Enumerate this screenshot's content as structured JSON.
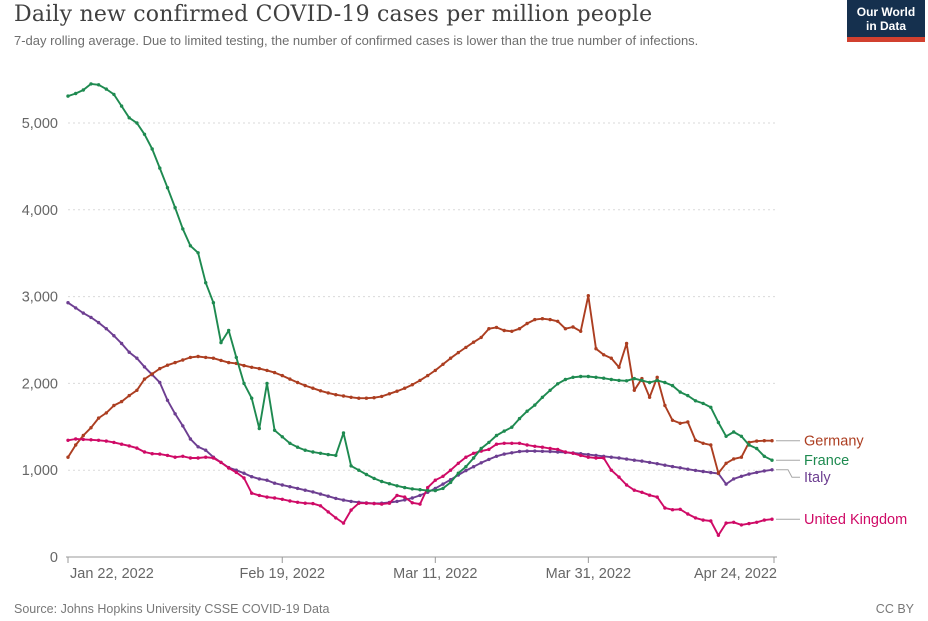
{
  "header": {
    "title": "Daily new confirmed COVID-19 cases per million people",
    "subtitle": "7-day rolling average. Due to limited testing, the number of confirmed cases is lower than the true number of infections."
  },
  "logo": {
    "line1": "Our World",
    "line2": "in Data",
    "bg_color": "#15304e",
    "bar_color": "#d1402f"
  },
  "footer": {
    "source_label": "Source:",
    "source_text": "Johns Hopkins University CSSE COVID-19 Data",
    "license": "CC BY"
  },
  "chart_data": {
    "type": "line",
    "title": "Daily new confirmed COVID-19 cases per million people",
    "subtitle": "7-day rolling average",
    "x_unit": "day",
    "start_date": "Jan 22, 2022",
    "end_date": "Apr 24, 2022",
    "n_points": 93,
    "grid": "horizontal-dashed",
    "legend_position": "right-of-lines",
    "ylim": [
      0,
      5450
    ],
    "x_ticks": [
      {
        "label": "Jan 22, 2022",
        "day": 0
      },
      {
        "label": "Feb 19, 2022",
        "day": 28
      },
      {
        "label": "Mar 11, 2022",
        "day": 48
      },
      {
        "label": "Mar 31, 2022",
        "day": 68
      },
      {
        "label": "Apr 24, 2022",
        "day": 92
      }
    ],
    "y_ticks": [
      {
        "value": 0,
        "label": "0"
      },
      {
        "value": 1000,
        "label": "1,000"
      },
      {
        "value": 2000,
        "label": "2,000"
      },
      {
        "value": 3000,
        "label": "3,000"
      },
      {
        "value": 4000,
        "label": "4,000"
      },
      {
        "value": 5000,
        "label": "5,000"
      }
    ],
    "series": [
      {
        "name": "Germany",
        "color": "#ac3e21",
        "values": [
          1150,
          1290,
          1400,
          1490,
          1600,
          1660,
          1745,
          1790,
          1860,
          1920,
          2050,
          2110,
          2170,
          2210,
          2240,
          2270,
          2300,
          2310,
          2300,
          2290,
          2265,
          2240,
          2230,
          2205,
          2185,
          2170,
          2150,
          2125,
          2090,
          2050,
          2010,
          1975,
          1945,
          1915,
          1890,
          1870,
          1855,
          1840,
          1830,
          1830,
          1835,
          1850,
          1880,
          1910,
          1945,
          1985,
          2035,
          2090,
          2150,
          2220,
          2290,
          2355,
          2415,
          2475,
          2530,
          2630,
          2645,
          2610,
          2600,
          2630,
          2690,
          2735,
          2745,
          2735,
          2715,
          2630,
          2650,
          2600,
          3010,
          2400,
          2330,
          2290,
          2185,
          2460,
          1920,
          2055,
          1840,
          2070,
          1745,
          1575,
          1540,
          1555,
          1345,
          1310,
          1290,
          965,
          1080,
          1130,
          1150,
          1320,
          1335,
          1340,
          1340
        ]
      },
      {
        "name": "France",
        "color": "#1e8a50",
        "values": [
          5310,
          5340,
          5380,
          5450,
          5440,
          5390,
          5330,
          5195,
          5060,
          5000,
          4870,
          4700,
          4480,
          4255,
          4025,
          3780,
          3585,
          3505,
          3160,
          2930,
          2470,
          2610,
          2300,
          2000,
          1830,
          1480,
          2000,
          1460,
          1385,
          1310,
          1265,
          1230,
          1210,
          1195,
          1180,
          1170,
          1430,
          1050,
          1000,
          950,
          905,
          870,
          845,
          820,
          800,
          785,
          775,
          765,
          765,
          790,
          860,
          965,
          1040,
          1140,
          1250,
          1320,
          1400,
          1450,
          1495,
          1595,
          1680,
          1750,
          1840,
          1920,
          1995,
          2045,
          2070,
          2080,
          2080,
          2070,
          2060,
          2045,
          2035,
          2030,
          2055,
          2035,
          2010,
          2035,
          2010,
          1975,
          1900,
          1860,
          1800,
          1770,
          1725,
          1550,
          1390,
          1440,
          1390,
          1290,
          1250,
          1160,
          1115
        ]
      },
      {
        "name": "Italy",
        "color": "#6d3e91",
        "values": [
          2930,
          2870,
          2810,
          2760,
          2700,
          2630,
          2550,
          2460,
          2360,
          2290,
          2190,
          2100,
          2010,
          1805,
          1650,
          1510,
          1360,
          1270,
          1230,
          1150,
          1090,
          1030,
          1000,
          965,
          925,
          900,
          885,
          850,
          830,
          810,
          790,
          770,
          750,
          725,
          700,
          675,
          655,
          640,
          630,
          622,
          618,
          620,
          628,
          640,
          658,
          680,
          710,
          745,
          790,
          840,
          890,
          945,
          995,
          1040,
          1085,
          1125,
          1160,
          1185,
          1200,
          1215,
          1220,
          1220,
          1218,
          1215,
          1210,
          1205,
          1198,
          1190,
          1180,
          1170,
          1160,
          1150,
          1140,
          1128,
          1115,
          1105,
          1090,
          1075,
          1058,
          1042,
          1028,
          1012,
          998,
          985,
          972,
          962,
          840,
          900,
          930,
          955,
          975,
          992,
          1005
        ]
      },
      {
        "name": "United Kingdom",
        "color": "#cf0a66",
        "values": [
          1345,
          1360,
          1355,
          1350,
          1345,
          1335,
          1320,
          1300,
          1280,
          1255,
          1210,
          1190,
          1185,
          1170,
          1150,
          1160,
          1140,
          1140,
          1150,
          1140,
          1090,
          1025,
          975,
          910,
          735,
          710,
          690,
          680,
          665,
          645,
          630,
          620,
          615,
          590,
          520,
          450,
          390,
          540,
          620,
          620,
          615,
          610,
          620,
          710,
          690,
          625,
          610,
          800,
          885,
          930,
          1000,
          1080,
          1150,
          1195,
          1220,
          1240,
          1300,
          1310,
          1310,
          1310,
          1290,
          1275,
          1265,
          1250,
          1240,
          1210,
          1195,
          1170,
          1150,
          1140,
          1140,
          1000,
          920,
          830,
          770,
          745,
          712,
          690,
          565,
          545,
          550,
          495,
          450,
          425,
          415,
          250,
          390,
          400,
          370,
          385,
          400,
          425,
          435
        ]
      }
    ]
  }
}
